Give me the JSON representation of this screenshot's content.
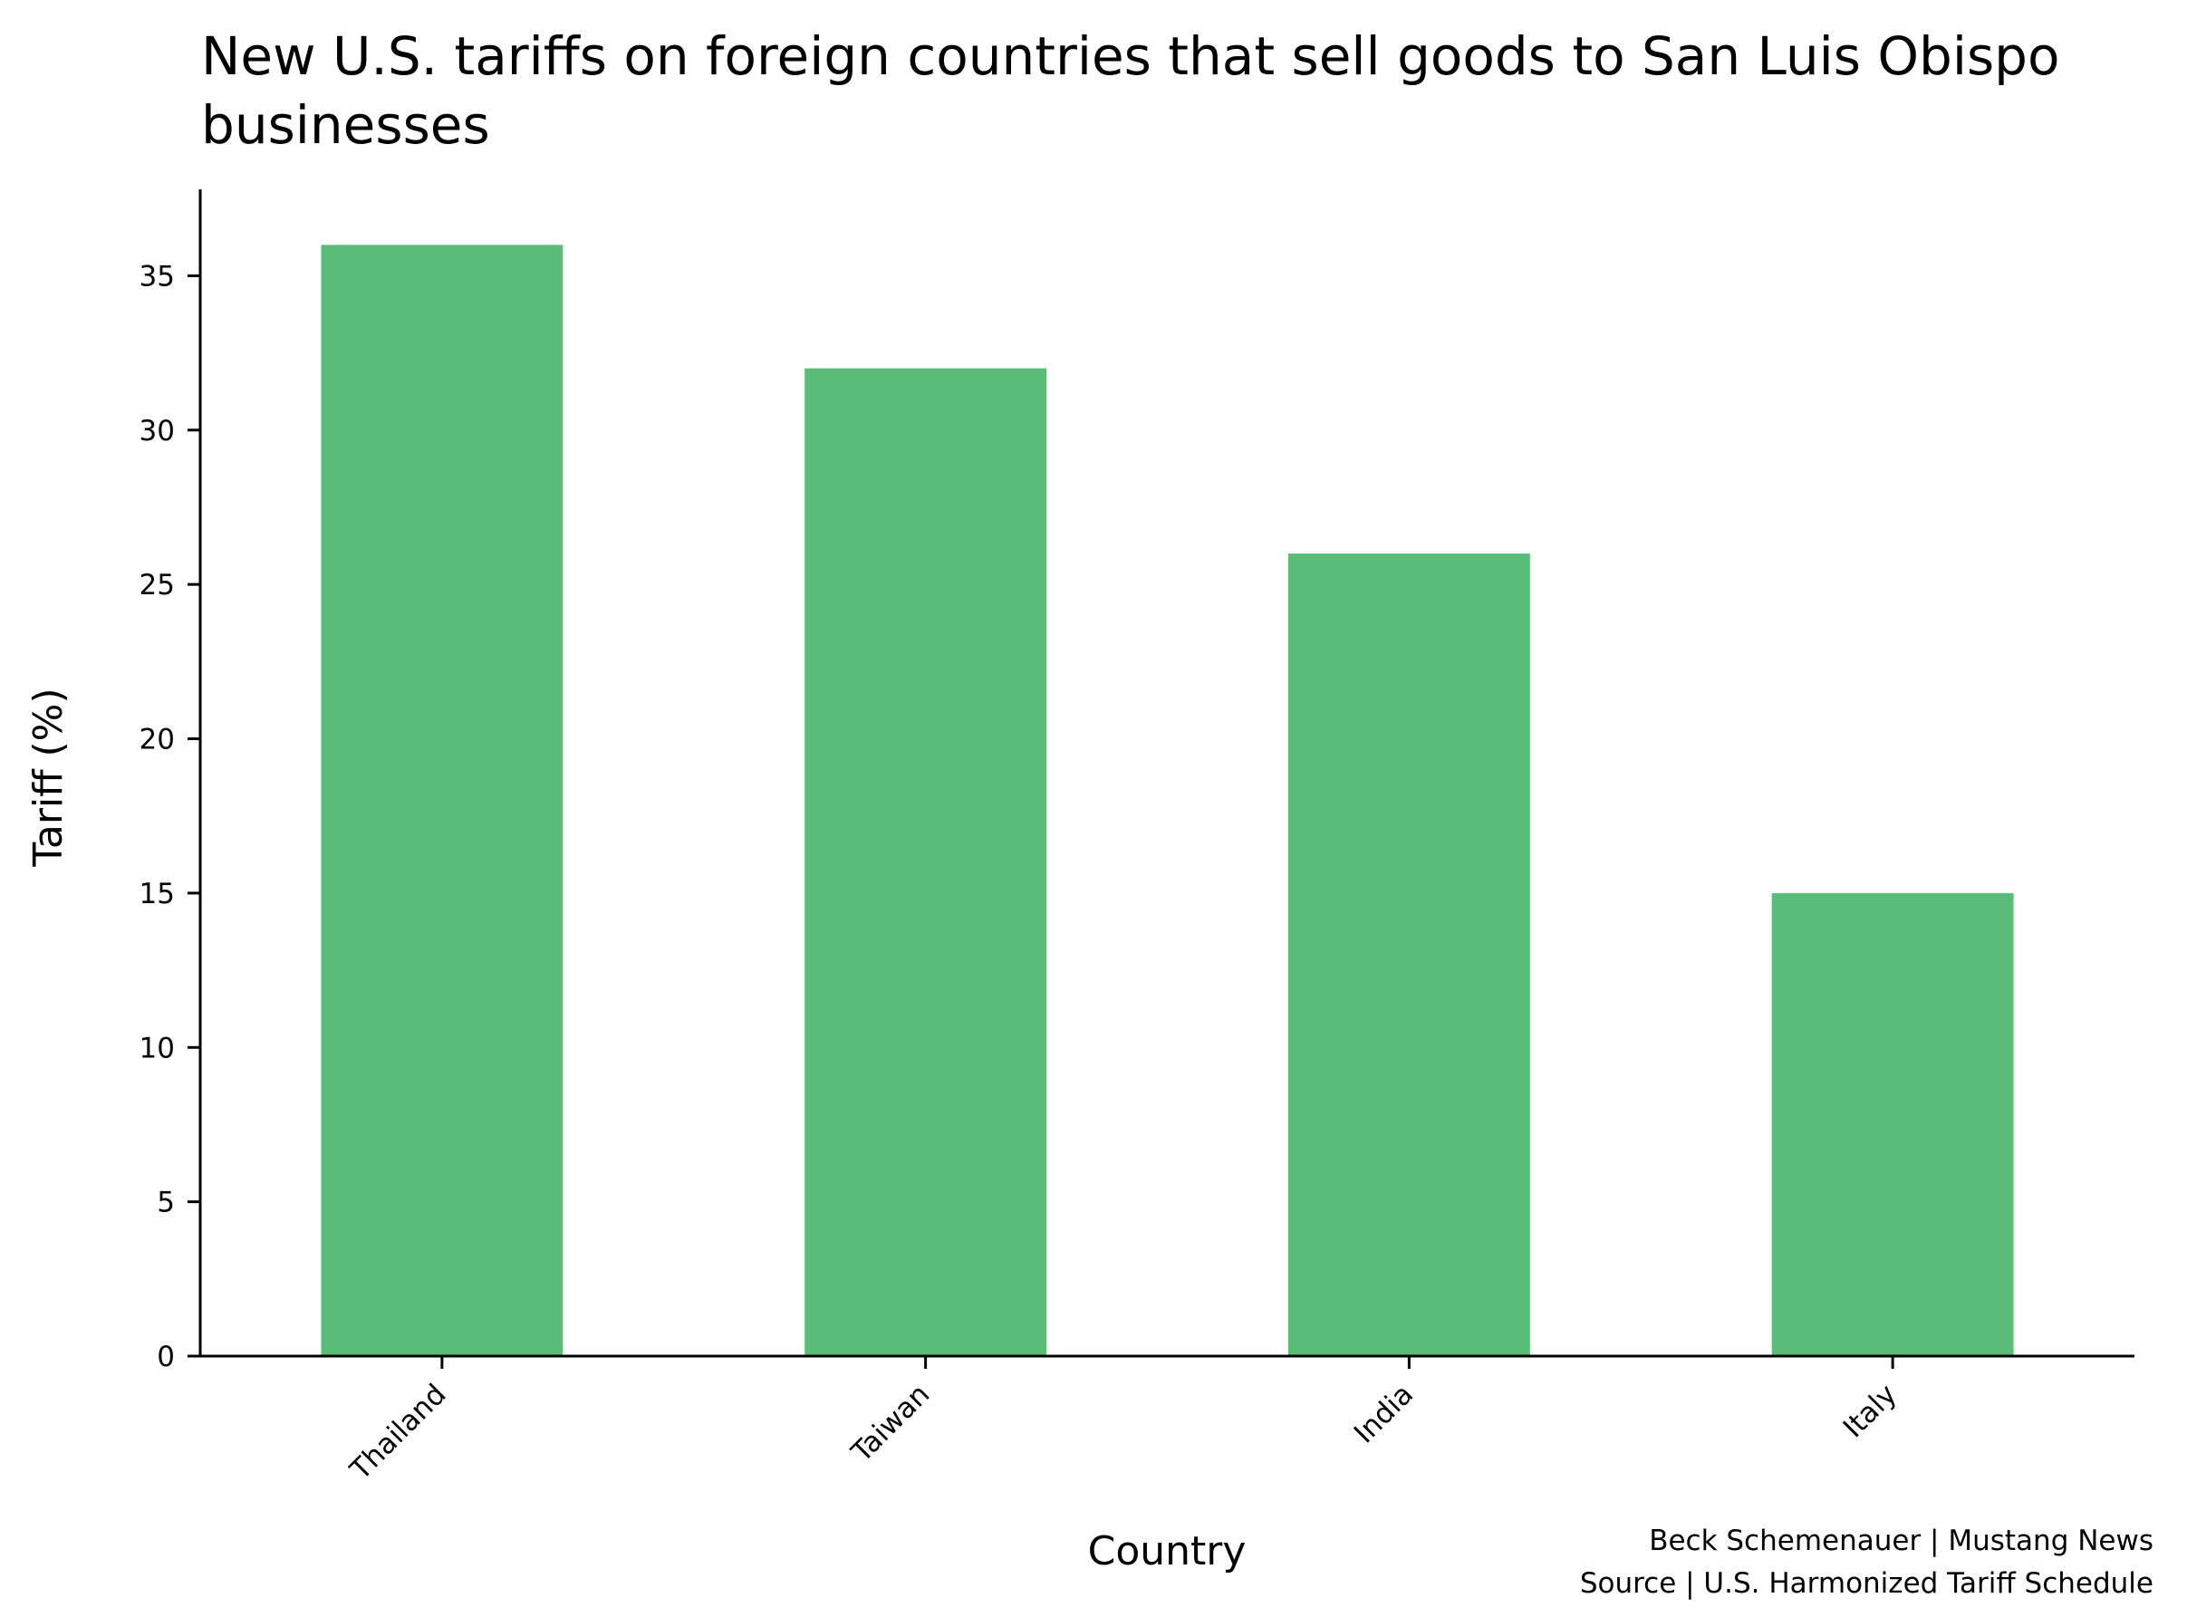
{
  "chart_data": {
    "type": "bar",
    "title": "New U.S. tariffs on foreign countries that sell goods to San Luis Obispo businesses",
    "title_lines": [
      "New U.S. tariffs on foreign countries that sell goods to San Luis Obispo",
      "businesses"
    ],
    "xlabel": "Country",
    "ylabel": "Tariff (%)",
    "categories": [
      "Thailand",
      "Taiwan",
      "India",
      "Italy"
    ],
    "values": [
      36,
      32,
      26,
      15
    ],
    "ylim": [
      0,
      37.8
    ],
    "yticks": [
      0,
      5,
      10,
      15,
      20,
      25,
      30,
      35
    ],
    "grid": false,
    "legend": "none",
    "bar_color": "#5abd77",
    "credits": [
      "Beck Schemenauer | Mustang News",
      "Source | U.S. Harmonized Tariff Schedule"
    ]
  }
}
